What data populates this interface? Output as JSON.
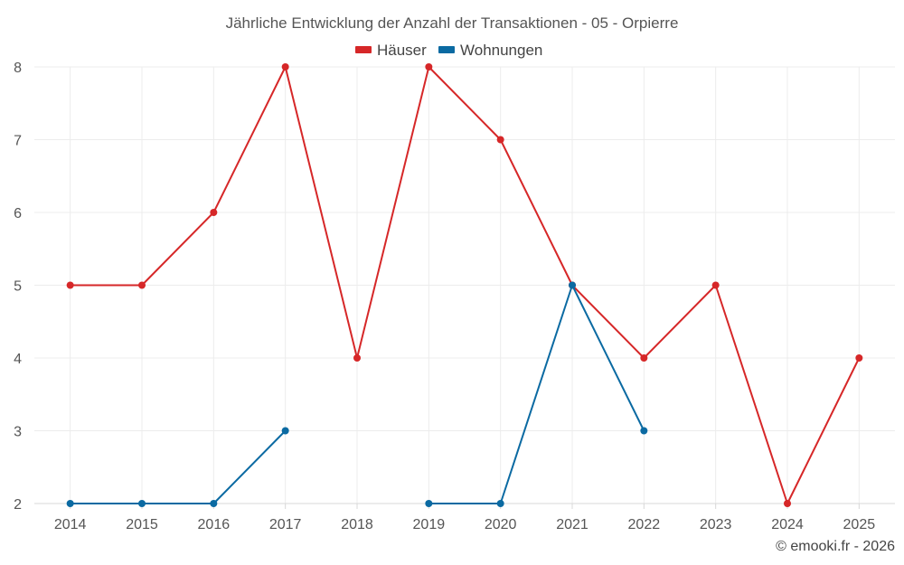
{
  "chart_data": {
    "type": "line",
    "title": "Jährliche Entwicklung der Anzahl der Transaktionen - 05 - Orpierre",
    "x": [
      "2014",
      "2015",
      "2016",
      "2017",
      "2018",
      "2019",
      "2020",
      "2021",
      "2022",
      "2023",
      "2024",
      "2025"
    ],
    "ylim": [
      2,
      8
    ],
    "yticks": [
      2,
      3,
      4,
      5,
      6,
      7,
      8
    ],
    "grid": true,
    "legend_position": "top",
    "series": [
      {
        "name": "Häuser",
        "color": "#d62728",
        "values": [
          5,
          5,
          6,
          8,
          4,
          8,
          7,
          5,
          4,
          5,
          2,
          4
        ]
      },
      {
        "name": "Wohnungen",
        "color": "#0b6aa2",
        "values": [
          2,
          2,
          2,
          3,
          null,
          2,
          2,
          5,
          3,
          null,
          null,
          null
        ]
      }
    ]
  },
  "credit": "© emooki.fr - 2026"
}
